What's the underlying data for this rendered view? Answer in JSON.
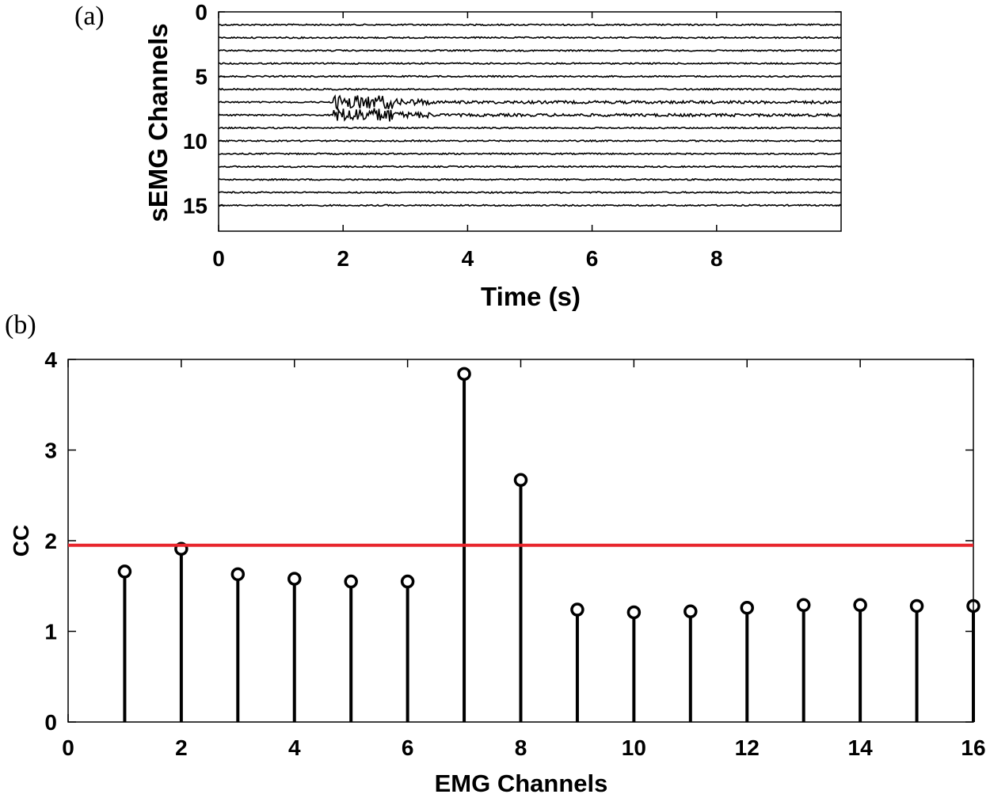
{
  "panel_a": {
    "letter": "(a)"
  },
  "panel_b": {
    "letter": "(b)"
  },
  "chart_data": [
    {
      "type": "line",
      "title": "",
      "xlabel": "Time (s)",
      "ylabel": "sEMG Channels",
      "xlim": [
        0,
        10
      ],
      "ylim": [
        17,
        0
      ],
      "xticks": [
        0,
        2,
        4,
        6,
        8
      ],
      "yticks": [
        0,
        5,
        10,
        15
      ],
      "channels": [
        1,
        2,
        3,
        4,
        5,
        6,
        7,
        8,
        9,
        10,
        11,
        12,
        13,
        14,
        15
      ],
      "active_channels": [
        7,
        8
      ],
      "burst_window_s": [
        1.85,
        2.8
      ],
      "description_series": "sEMG raw traces, one per channel, offset vertically"
    },
    {
      "type": "stem",
      "title": "",
      "xlabel": "EMG Channels",
      "ylabel": "CC",
      "xlim": [
        0,
        16
      ],
      "ylim": [
        0,
        4
      ],
      "xticks": [
        0,
        2,
        4,
        6,
        8,
        10,
        12,
        14,
        16
      ],
      "yticks": [
        0,
        1,
        2,
        3,
        4
      ],
      "x": [
        1,
        2,
        3,
        4,
        5,
        6,
        7,
        8,
        9,
        10,
        11,
        12,
        13,
        14,
        15,
        16
      ],
      "values": [
        1.66,
        1.91,
        1.63,
        1.58,
        1.55,
        1.55,
        3.84,
        2.67,
        1.24,
        1.21,
        1.22,
        1.26,
        1.29,
        1.29,
        1.28,
        1.28
      ],
      "threshold": 1.95,
      "threshold_color": "#e8262d",
      "marker_color": "#000000"
    }
  ]
}
